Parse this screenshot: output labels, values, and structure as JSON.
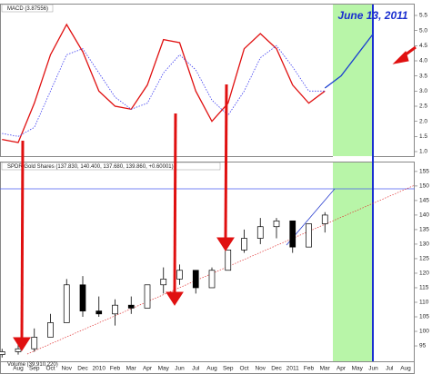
{
  "chart_data": [
    {
      "type": "line",
      "legend_label": "MACD (3.87556)",
      "ylim": [
        0.85,
        5.86
      ],
      "yticks": [
        {
          "value": 1.0,
          "label": "1.0"
        },
        1.5,
        {
          "value": 2.0,
          "label": "2.0"
        },
        2.5,
        {
          "value": 3.0,
          "label": "3.0"
        },
        3.5,
        {
          "value": 4.0,
          "label": "4.0"
        },
        4.5,
        {
          "value": 5.0,
          "label": "5.0"
        },
        5.5
      ],
      "annotation": "June 13, 2011",
      "series": [
        {
          "color": "#e01010",
          "style": "solid",
          "values": [
            1.4,
            1.3,
            2.6,
            4.2,
            5.2,
            4.3,
            3.0,
            2.5,
            2.4,
            3.2,
            4.7,
            4.6,
            3.0,
            2.0,
            2.6,
            4.4,
            4.9,
            4.4,
            3.2,
            2.6,
            3.0,
            null,
            null,
            null,
            null,
            null
          ]
        },
        {
          "color": "#3a3af0",
          "style": "dotted",
          "values": [
            1.6,
            1.5,
            1.8,
            3.0,
            4.2,
            4.4,
            3.6,
            2.8,
            2.4,
            2.6,
            3.6,
            4.2,
            3.7,
            2.7,
            2.2,
            3.0,
            4.1,
            4.5,
            3.8,
            3.0,
            3.0,
            null,
            null,
            null,
            null,
            null
          ]
        },
        {
          "color": "#1a3fd0",
          "style": "solid",
          "values": [
            null,
            null,
            null,
            null,
            null,
            null,
            null,
            null,
            null,
            null,
            null,
            null,
            null,
            null,
            null,
            null,
            null,
            null,
            null,
            null,
            3.1,
            3.5,
            4.2,
            4.9,
            null,
            null
          ]
        }
      ]
    },
    {
      "type": "candlestick",
      "legend_label": "SPDR Gold Shares (137.830, 140.400, 137.680, 139.860, +0.60001)",
      "volume_label": "Volume (39,910,220)",
      "categories": [
        null,
        "Aug",
        "Sep",
        "Oct",
        "Nov",
        "Dec",
        "2010",
        "Feb",
        "Mar",
        "Apr",
        "May",
        "Jun",
        "Jul",
        "Aug",
        "Sep",
        "Oct",
        "Nov",
        "Dec",
        "2011",
        "Feb",
        "Mar",
        "Apr",
        "May",
        "Jun",
        "Jul",
        "Aug"
      ],
      "ylim": [
        89.7,
        158.4
      ],
      "yticks": [
        95,
        100,
        105,
        110,
        115,
        120,
        125,
        130,
        135,
        140,
        145,
        150,
        155
      ],
      "open": [
        92,
        93,
        94,
        98,
        103,
        116,
        107,
        106,
        109,
        108,
        116,
        118,
        121,
        115,
        121,
        128,
        132,
        136,
        138,
        129,
        137,
        null,
        null,
        null,
        null,
        null
      ],
      "high": [
        94,
        96,
        101,
        106,
        118,
        119,
        112,
        111,
        112,
        116,
        122,
        123,
        121,
        122,
        128,
        135,
        139,
        139,
        138,
        137,
        141,
        null,
        null,
        null,
        null,
        null
      ],
      "low": [
        91,
        92,
        93,
        98,
        103,
        105,
        105,
        102,
        106,
        108,
        113,
        116,
        113,
        115,
        121,
        127,
        130,
        132,
        127,
        129,
        134,
        null,
        null,
        null,
        null,
        null
      ],
      "close": [
        93,
        94,
        98,
        103,
        116,
        107,
        106,
        109,
        108,
        116,
        118,
        121,
        115,
        121,
        128,
        132,
        136,
        138,
        129,
        137,
        140,
        null,
        null,
        null,
        null,
        null
      ]
    }
  ]
}
